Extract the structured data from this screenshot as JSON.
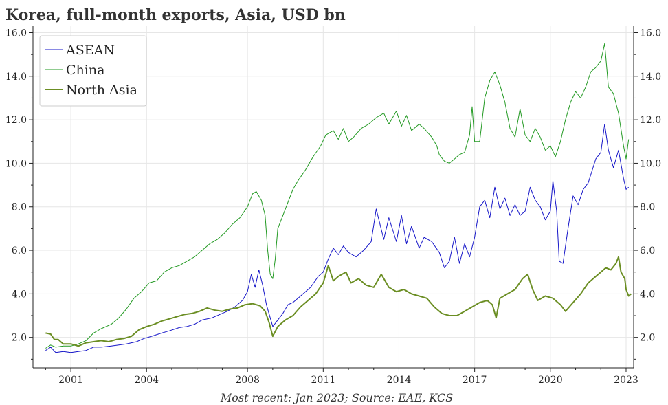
{
  "chart_data": {
    "type": "line",
    "title": "Korea, full-month exports, Asia, USD bn",
    "source_note": "Most recent: Jan 2023; Source: EAE, KCS",
    "xlim": [
      1999.5,
      2023.3
    ],
    "ylim": [
      0.6,
      16.3
    ],
    "x_ticks": [
      2001,
      2004,
      2008,
      2011,
      2014,
      2017,
      2020,
      2023
    ],
    "y_ticks": [
      2,
      4,
      6,
      8,
      10,
      12,
      14,
      16
    ],
    "y_tick_labels": [
      "2.0",
      "4.0",
      "6.0",
      "8.0",
      "10.0",
      "12.0",
      "14.0",
      "16.0"
    ],
    "legend_position": "upper-left",
    "grid": true,
    "series": [
      {
        "name": "ASEAN",
        "color": "#1515c8",
        "width": 1,
        "points": [
          [
            2000.0,
            1.4
          ],
          [
            2000.2,
            1.55
          ],
          [
            2000.4,
            1.3
          ],
          [
            2000.7,
            1.35
          ],
          [
            2001.0,
            1.3
          ],
          [
            2001.3,
            1.35
          ],
          [
            2001.6,
            1.4
          ],
          [
            2001.9,
            1.55
          ],
          [
            2002.2,
            1.55
          ],
          [
            2002.6,
            1.6
          ],
          [
            2002.9,
            1.65
          ],
          [
            2003.2,
            1.7
          ],
          [
            2003.6,
            1.8
          ],
          [
            2003.9,
            1.95
          ],
          [
            2004.2,
            2.05
          ],
          [
            2004.6,
            2.2
          ],
          [
            2004.9,
            2.3
          ],
          [
            2005.3,
            2.45
          ],
          [
            2005.6,
            2.5
          ],
          [
            2005.9,
            2.6
          ],
          [
            2006.2,
            2.8
          ],
          [
            2006.6,
            2.9
          ],
          [
            2006.9,
            3.05
          ],
          [
            2007.2,
            3.2
          ],
          [
            2007.5,
            3.4
          ],
          [
            2007.8,
            3.7
          ],
          [
            2008.0,
            4.1
          ],
          [
            2008.15,
            4.9
          ],
          [
            2008.3,
            4.3
          ],
          [
            2008.45,
            5.1
          ],
          [
            2008.6,
            4.4
          ],
          [
            2008.75,
            3.5
          ],
          [
            2008.9,
            2.9
          ],
          [
            2009.0,
            2.5
          ],
          [
            2009.2,
            2.8
          ],
          [
            2009.4,
            3.1
          ],
          [
            2009.6,
            3.5
          ],
          [
            2009.8,
            3.6
          ],
          [
            2010.0,
            3.8
          ],
          [
            2010.2,
            4.0
          ],
          [
            2010.5,
            4.3
          ],
          [
            2010.8,
            4.8
          ],
          [
            2011.0,
            5.0
          ],
          [
            2011.2,
            5.6
          ],
          [
            2011.4,
            6.1
          ],
          [
            2011.6,
            5.8
          ],
          [
            2011.8,
            6.2
          ],
          [
            2012.0,
            5.9
          ],
          [
            2012.3,
            5.7
          ],
          [
            2012.6,
            6.0
          ],
          [
            2012.9,
            6.4
          ],
          [
            2013.1,
            7.9
          ],
          [
            2013.4,
            6.5
          ],
          [
            2013.6,
            7.5
          ],
          [
            2013.9,
            6.4
          ],
          [
            2014.1,
            7.6
          ],
          [
            2014.3,
            6.3
          ],
          [
            2014.5,
            7.1
          ],
          [
            2014.8,
            6.1
          ],
          [
            2015.0,
            6.6
          ],
          [
            2015.3,
            6.4
          ],
          [
            2015.6,
            5.9
          ],
          [
            2015.8,
            5.2
          ],
          [
            2016.0,
            5.5
          ],
          [
            2016.2,
            6.6
          ],
          [
            2016.4,
            5.4
          ],
          [
            2016.6,
            6.3
          ],
          [
            2016.8,
            5.7
          ],
          [
            2017.0,
            6.6
          ],
          [
            2017.2,
            8.0
          ],
          [
            2017.4,
            8.3
          ],
          [
            2017.6,
            7.5
          ],
          [
            2017.8,
            8.9
          ],
          [
            2018.0,
            7.9
          ],
          [
            2018.2,
            8.4
          ],
          [
            2018.4,
            7.6
          ],
          [
            2018.6,
            8.1
          ],
          [
            2018.8,
            7.6
          ],
          [
            2019.0,
            7.8
          ],
          [
            2019.2,
            8.9
          ],
          [
            2019.4,
            8.3
          ],
          [
            2019.6,
            8.0
          ],
          [
            2019.8,
            7.4
          ],
          [
            2020.0,
            7.8
          ],
          [
            2020.1,
            9.2
          ],
          [
            2020.25,
            7.8
          ],
          [
            2020.35,
            5.5
          ],
          [
            2020.5,
            5.4
          ],
          [
            2020.7,
            7.0
          ],
          [
            2020.9,
            8.5
          ],
          [
            2021.1,
            8.1
          ],
          [
            2021.3,
            8.8
          ],
          [
            2021.5,
            9.1
          ],
          [
            2021.8,
            10.2
          ],
          [
            2022.0,
            10.5
          ],
          [
            2022.15,
            11.8
          ],
          [
            2022.3,
            10.6
          ],
          [
            2022.5,
            9.8
          ],
          [
            2022.7,
            10.6
          ],
          [
            2022.9,
            9.3
          ],
          [
            2023.0,
            8.8
          ],
          [
            2023.1,
            8.9
          ]
        ]
      },
      {
        "name": "China",
        "color": "#229922",
        "width": 1,
        "points": [
          [
            2000.0,
            1.5
          ],
          [
            2000.2,
            1.65
          ],
          [
            2000.4,
            1.55
          ],
          [
            2000.7,
            1.6
          ],
          [
            2001.0,
            1.6
          ],
          [
            2001.3,
            1.7
          ],
          [
            2001.6,
            1.85
          ],
          [
            2001.9,
            2.2
          ],
          [
            2002.2,
            2.4
          ],
          [
            2002.6,
            2.6
          ],
          [
            2002.9,
            2.9
          ],
          [
            2003.2,
            3.3
          ],
          [
            2003.5,
            3.8
          ],
          [
            2003.8,
            4.1
          ],
          [
            2004.1,
            4.5
          ],
          [
            2004.4,
            4.6
          ],
          [
            2004.7,
            5.0
          ],
          [
            2005.0,
            5.2
          ],
          [
            2005.3,
            5.3
          ],
          [
            2005.6,
            5.5
          ],
          [
            2005.9,
            5.7
          ],
          [
            2006.2,
            6.0
          ],
          [
            2006.5,
            6.3
          ],
          [
            2006.8,
            6.5
          ],
          [
            2007.1,
            6.8
          ],
          [
            2007.4,
            7.2
          ],
          [
            2007.7,
            7.5
          ],
          [
            2008.0,
            8.0
          ],
          [
            2008.2,
            8.6
          ],
          [
            2008.35,
            8.7
          ],
          [
            2008.55,
            8.3
          ],
          [
            2008.7,
            7.6
          ],
          [
            2008.8,
            6.0
          ],
          [
            2008.9,
            4.9
          ],
          [
            2009.0,
            4.7
          ],
          [
            2009.1,
            5.6
          ],
          [
            2009.2,
            7.0
          ],
          [
            2009.4,
            7.6
          ],
          [
            2009.6,
            8.2
          ],
          [
            2009.8,
            8.8
          ],
          [
            2010.0,
            9.2
          ],
          [
            2010.3,
            9.7
          ],
          [
            2010.6,
            10.3
          ],
          [
            2010.9,
            10.8
          ],
          [
            2011.1,
            11.3
          ],
          [
            2011.4,
            11.5
          ],
          [
            2011.6,
            11.1
          ],
          [
            2011.8,
            11.6
          ],
          [
            2012.0,
            11.0
          ],
          [
            2012.2,
            11.2
          ],
          [
            2012.5,
            11.6
          ],
          [
            2012.8,
            11.8
          ],
          [
            2013.1,
            12.1
          ],
          [
            2013.4,
            12.3
          ],
          [
            2013.6,
            11.8
          ],
          [
            2013.9,
            12.4
          ],
          [
            2014.1,
            11.7
          ],
          [
            2014.3,
            12.2
          ],
          [
            2014.5,
            11.5
          ],
          [
            2014.8,
            11.8
          ],
          [
            2015.0,
            11.6
          ],
          [
            2015.3,
            11.2
          ],
          [
            2015.5,
            10.8
          ],
          [
            2015.6,
            10.4
          ],
          [
            2015.8,
            10.1
          ],
          [
            2016.0,
            10.0
          ],
          [
            2016.2,
            10.2
          ],
          [
            2016.4,
            10.4
          ],
          [
            2016.6,
            10.5
          ],
          [
            2016.8,
            11.3
          ],
          [
            2016.9,
            12.6
          ],
          [
            2017.0,
            11.0
          ],
          [
            2017.2,
            11.0
          ],
          [
            2017.4,
            13.0
          ],
          [
            2017.6,
            13.8
          ],
          [
            2017.8,
            14.2
          ],
          [
            2018.0,
            13.6
          ],
          [
            2018.2,
            12.8
          ],
          [
            2018.4,
            11.6
          ],
          [
            2018.6,
            11.2
          ],
          [
            2018.8,
            12.5
          ],
          [
            2019.0,
            11.3
          ],
          [
            2019.2,
            11.0
          ],
          [
            2019.4,
            11.6
          ],
          [
            2019.6,
            11.2
          ],
          [
            2019.8,
            10.6
          ],
          [
            2020.0,
            10.8
          ],
          [
            2020.2,
            10.3
          ],
          [
            2020.4,
            11.0
          ],
          [
            2020.6,
            12.0
          ],
          [
            2020.8,
            12.8
          ],
          [
            2021.0,
            13.3
          ],
          [
            2021.2,
            13.0
          ],
          [
            2021.4,
            13.5
          ],
          [
            2021.6,
            14.2
          ],
          [
            2021.8,
            14.4
          ],
          [
            2022.0,
            14.7
          ],
          [
            2022.15,
            15.5
          ],
          [
            2022.3,
            13.5
          ],
          [
            2022.5,
            13.2
          ],
          [
            2022.7,
            12.3
          ],
          [
            2022.9,
            10.8
          ],
          [
            2023.0,
            10.2
          ],
          [
            2023.1,
            11.1
          ]
        ]
      },
      {
        "name": "North Asia",
        "color": "#6b8e23",
        "width": 2,
        "points": [
          [
            2000.0,
            2.2
          ],
          [
            2000.2,
            2.15
          ],
          [
            2000.35,
            1.9
          ],
          [
            2000.5,
            1.9
          ],
          [
            2000.7,
            1.7
          ],
          [
            2001.0,
            1.7
          ],
          [
            2001.3,
            1.6
          ],
          [
            2001.6,
            1.75
          ],
          [
            2001.9,
            1.8
          ],
          [
            2002.2,
            1.85
          ],
          [
            2002.5,
            1.8
          ],
          [
            2002.8,
            1.9
          ],
          [
            2003.1,
            1.95
          ],
          [
            2003.4,
            2.05
          ],
          [
            2003.7,
            2.35
          ],
          [
            2004.0,
            2.5
          ],
          [
            2004.3,
            2.6
          ],
          [
            2004.6,
            2.75
          ],
          [
            2004.9,
            2.85
          ],
          [
            2005.2,
            2.95
          ],
          [
            2005.5,
            3.05
          ],
          [
            2005.8,
            3.1
          ],
          [
            2006.1,
            3.2
          ],
          [
            2006.4,
            3.35
          ],
          [
            2006.7,
            3.25
          ],
          [
            2007.0,
            3.2
          ],
          [
            2007.3,
            3.3
          ],
          [
            2007.6,
            3.35
          ],
          [
            2007.9,
            3.5
          ],
          [
            2008.2,
            3.55
          ],
          [
            2008.5,
            3.45
          ],
          [
            2008.7,
            3.2
          ],
          [
            2008.85,
            2.7
          ],
          [
            2009.0,
            2.05
          ],
          [
            2009.2,
            2.5
          ],
          [
            2009.5,
            2.8
          ],
          [
            2009.8,
            3.0
          ],
          [
            2010.1,
            3.4
          ],
          [
            2010.4,
            3.7
          ],
          [
            2010.7,
            4.0
          ],
          [
            2011.0,
            4.5
          ],
          [
            2011.2,
            5.3
          ],
          [
            2011.4,
            4.6
          ],
          [
            2011.6,
            4.8
          ],
          [
            2011.9,
            5.0
          ],
          [
            2012.1,
            4.5
          ],
          [
            2012.4,
            4.7
          ],
          [
            2012.7,
            4.4
          ],
          [
            2013.0,
            4.3
          ],
          [
            2013.3,
            4.9
          ],
          [
            2013.6,
            4.3
          ],
          [
            2013.9,
            4.1
          ],
          [
            2014.2,
            4.2
          ],
          [
            2014.5,
            4.0
          ],
          [
            2014.8,
            3.9
          ],
          [
            2015.1,
            3.8
          ],
          [
            2015.4,
            3.4
          ],
          [
            2015.7,
            3.1
          ],
          [
            2016.0,
            3.0
          ],
          [
            2016.3,
            3.0
          ],
          [
            2016.6,
            3.2
          ],
          [
            2016.9,
            3.4
          ],
          [
            2017.2,
            3.6
          ],
          [
            2017.5,
            3.7
          ],
          [
            2017.7,
            3.5
          ],
          [
            2017.85,
            2.9
          ],
          [
            2018.0,
            3.8
          ],
          [
            2018.3,
            4.0
          ],
          [
            2018.6,
            4.2
          ],
          [
            2018.9,
            4.7
          ],
          [
            2019.1,
            4.9
          ],
          [
            2019.3,
            4.2
          ],
          [
            2019.5,
            3.7
          ],
          [
            2019.8,
            3.9
          ],
          [
            2020.1,
            3.8
          ],
          [
            2020.4,
            3.5
          ],
          [
            2020.6,
            3.2
          ],
          [
            2020.9,
            3.6
          ],
          [
            2021.2,
            4.0
          ],
          [
            2021.5,
            4.5
          ],
          [
            2021.8,
            4.8
          ],
          [
            2022.0,
            5.0
          ],
          [
            2022.2,
            5.2
          ],
          [
            2022.4,
            5.1
          ],
          [
            2022.6,
            5.4
          ],
          [
            2022.7,
            5.7
          ],
          [
            2022.8,
            5.0
          ],
          [
            2022.95,
            4.7
          ],
          [
            2023.0,
            4.2
          ],
          [
            2023.1,
            3.9
          ],
          [
            2023.2,
            4.0
          ]
        ]
      }
    ]
  }
}
